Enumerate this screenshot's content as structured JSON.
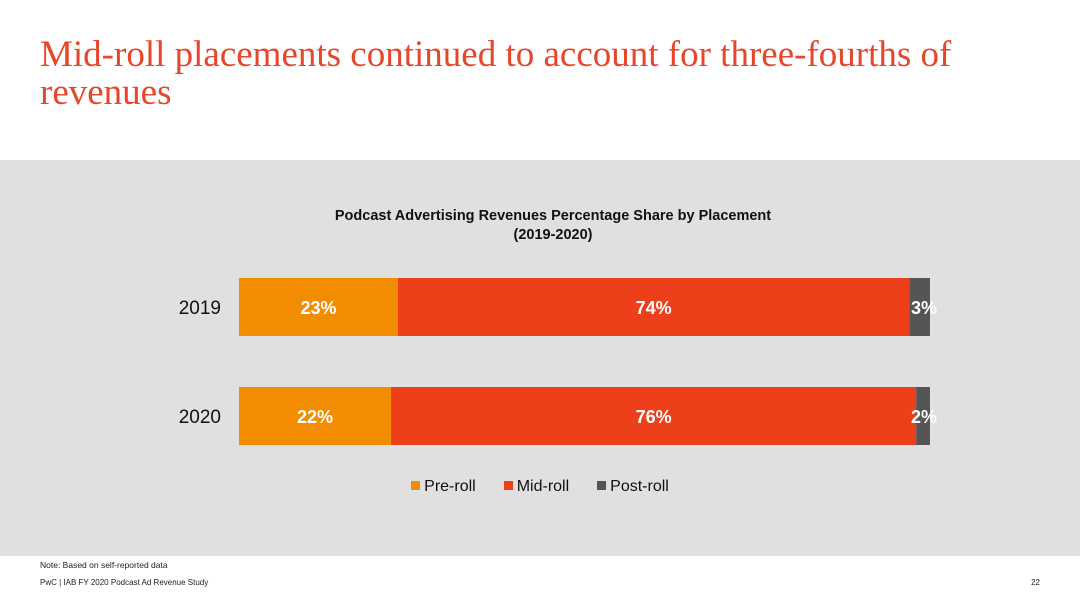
{
  "headline": "Mid-roll placements continued to account for three-fourths of revenues",
  "chart_data": {
    "type": "bar",
    "orientation": "horizontal",
    "stacked": true,
    "title_line1": "Podcast Advertising Revenues Percentage Share by Placement",
    "title_line2": "(2019-2020)",
    "categories": [
      "2019",
      "2020"
    ],
    "series": [
      {
        "name": "Pre-roll",
        "values": [
          23,
          22
        ],
        "labels": [
          "23%",
          "22%"
        ],
        "color": "#f28c00"
      },
      {
        "name": "Mid-roll",
        "values": [
          74,
          76
        ],
        "labels": [
          "74%",
          "76%"
        ],
        "color": "#ee3f1b"
      },
      {
        "name": "Post-roll",
        "values": [
          3,
          2
        ],
        "labels": [
          "3%",
          "2%"
        ],
        "color": "#555555"
      }
    ],
    "xlim": [
      0,
      100
    ],
    "legend_position": "bottom",
    "grid": false
  },
  "note": "Note: Based on self-reported data",
  "footer": "PwC  |  IAB FY 2020 Podcast Ad Revenue Study",
  "page_number": "22"
}
